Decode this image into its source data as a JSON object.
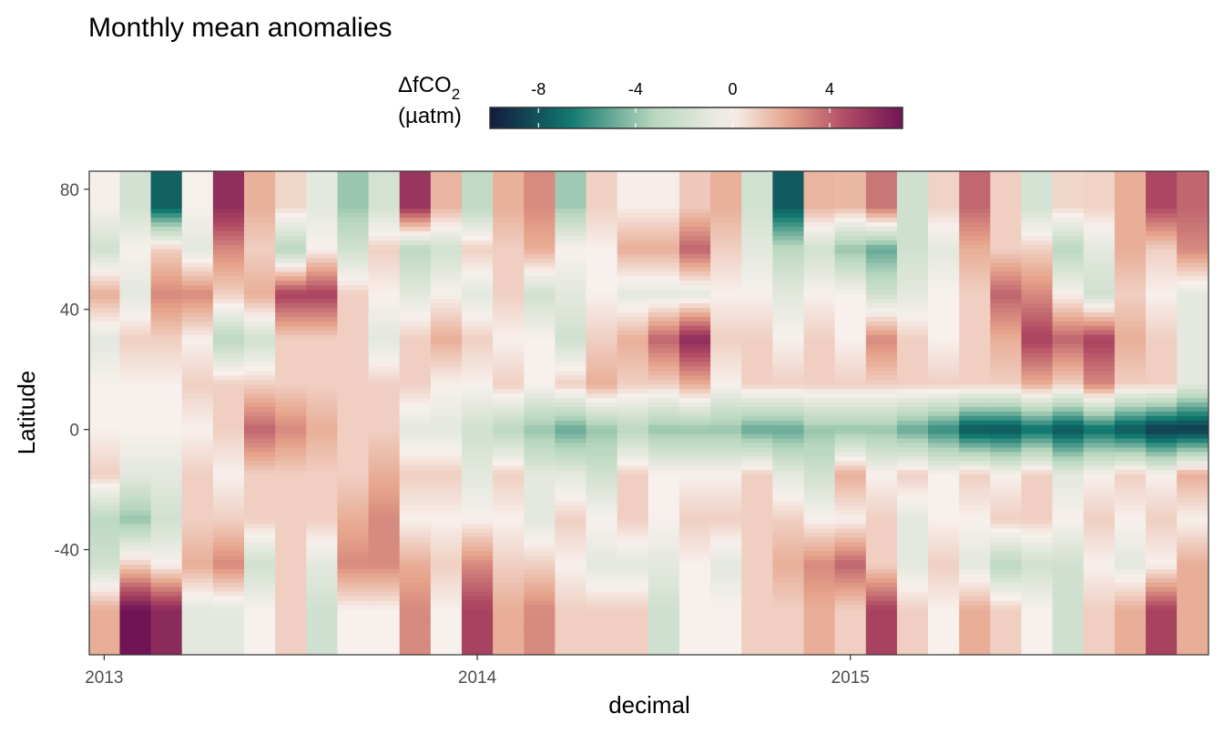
{
  "chart_data": {
    "type": "heatmap",
    "title": "Monthly mean anomalies",
    "xlabel": "decimal",
    "ylabel": "Latitude",
    "x_ticks": [
      "2013",
      "2014",
      "2015"
    ],
    "x_tick_values": [
      2013,
      2014,
      2015
    ],
    "y_ticks": [
      "80",
      "40",
      "0",
      "-40"
    ],
    "y_tick_values": [
      80,
      40,
      0,
      -40
    ],
    "xlim": [
      2012.96,
      2015.96
    ],
    "ylim": [
      -75,
      86
    ],
    "legend": {
      "title_main": "ΔfCO",
      "title_sub": "2",
      "title_unit": "(µatm)",
      "ticks": [
        "-8",
        "-4",
        "0",
        "4"
      ],
      "tick_values": [
        -8,
        -4,
        0,
        4
      ],
      "range": [
        -10,
        7
      ],
      "colors": [
        "#141b3f",
        "#10796f",
        "#b6d6bd",
        "#f7f0ec",
        "#e6a38a",
        "#b04a63",
        "#701456"
      ],
      "placement": "top"
    },
    "months": [
      "2013-01",
      "2013-02",
      "2013-03",
      "2013-04",
      "2013-05",
      "2013-06",
      "2013-07",
      "2013-08",
      "2013-09",
      "2013-10",
      "2013-11",
      "2013-12",
      "2014-01",
      "2014-02",
      "2014-03",
      "2014-04",
      "2014-05",
      "2014-06",
      "2014-07",
      "2014-08",
      "2014-09",
      "2014-10",
      "2014-11",
      "2014-12",
      "2015-01",
      "2015-02",
      "2015-03",
      "2015-04",
      "2015-05",
      "2015-06",
      "2015-07",
      "2015-08",
      "2015-09",
      "2015-10",
      "2015-11",
      "2015-12"
    ],
    "latitude_bands": [
      75,
      60,
      45,
      30,
      15,
      0,
      -15,
      -30,
      -45,
      -60,
      -70
    ],
    "anomalies": [
      [
        0,
        -2,
        2,
        -1,
        0,
        0,
        1,
        -3,
        -2,
        2
      ],
      [
        -2,
        0,
        -1,
        1,
        0,
        0,
        -1,
        -4,
        1,
        7
      ],
      [
        -8,
        1,
        3,
        1,
        0,
        0,
        -1,
        -2,
        0,
        6
      ],
      [
        0,
        -1,
        3,
        0,
        1,
        0,
        1,
        1,
        2,
        -1
      ],
      [
        6,
        3,
        1,
        -3,
        1,
        1,
        0,
        1,
        3,
        -1
      ],
      [
        2,
        1,
        2,
        -2,
        1,
        4,
        1,
        1,
        -2,
        0
      ],
      [
        1,
        -3,
        5,
        1,
        1,
        3,
        1,
        1,
        1,
        1
      ],
      [
        -1,
        0,
        5,
        1,
        1,
        2,
        1,
        1,
        -1,
        -2
      ],
      [
        -4,
        -2,
        1,
        1,
        1,
        1,
        1,
        2,
        3,
        0
      ],
      [
        -2,
        1,
        0,
        -1,
        1,
        1,
        2,
        3,
        3,
        0
      ],
      [
        6,
        -3,
        -1,
        1,
        1,
        -1,
        1,
        0,
        2,
        3
      ],
      [
        2,
        -2,
        0,
        2,
        0,
        -1,
        1,
        0,
        1,
        0
      ],
      [
        -3,
        1,
        -1,
        1,
        0,
        -2,
        -1,
        0,
        3,
        5
      ],
      [
        2,
        1,
        1,
        0,
        1,
        -3,
        1,
        0,
        1,
        2
      ],
      [
        3,
        2,
        -2,
        0,
        0,
        -4,
        -1,
        -1,
        1,
        3
      ],
      [
        -4,
        0,
        -1,
        -2,
        1,
        -5,
        -1,
        1,
        0,
        1
      ],
      [
        1,
        0,
        0,
        1,
        2,
        -4,
        -2,
        0,
        -1,
        1
      ],
      [
        0,
        2,
        -1,
        2,
        1,
        -3,
        1,
        1,
        -1,
        1
      ],
      [
        0,
        2,
        -1,
        4,
        1,
        -4,
        0,
        0,
        -1,
        -2
      ],
      [
        1,
        4,
        -1,
        6,
        2,
        -4,
        0,
        1,
        0,
        0
      ],
      [
        2,
        1,
        0,
        1,
        0,
        -4,
        0,
        1,
        -1,
        0
      ],
      [
        -2,
        -1,
        0,
        1,
        1,
        -5,
        1,
        1,
        1,
        1
      ],
      [
        -8,
        -3,
        -1,
        0,
        1,
        -5,
        -1,
        1,
        2,
        1
      ],
      [
        2,
        -2,
        0,
        1,
        1,
        -4,
        -2,
        0,
        3,
        2
      ],
      [
        2,
        -4,
        0,
        0,
        1,
        -4,
        2,
        0,
        4,
        1
      ],
      [
        4,
        -5,
        -2,
        3,
        1,
        -4,
        0,
        1,
        1,
        5
      ],
      [
        -2,
        -2,
        -1,
        1,
        1,
        -5,
        1,
        -1,
        -1,
        1
      ],
      [
        1,
        -1,
        0,
        0,
        1,
        -6,
        0,
        0,
        1,
        0
      ],
      [
        4,
        2,
        1,
        1,
        1,
        -8,
        1,
        0,
        -1,
        2
      ],
      [
        1,
        1,
        4,
        2,
        1,
        -8,
        0,
        1,
        -3,
        1
      ],
      [
        -2,
        1,
        3,
        5,
        2,
        -7,
        1,
        1,
        -2,
        0
      ],
      [
        1,
        -3,
        0,
        4,
        1,
        -8,
        -1,
        0,
        -2,
        -2
      ],
      [
        1,
        -1,
        -2,
        5,
        3,
        -7,
        0,
        1,
        0,
        1
      ],
      [
        2,
        2,
        1,
        2,
        1,
        -8,
        1,
        0,
        -1,
        2
      ],
      [
        5,
        1,
        0,
        1,
        1,
        -9,
        0,
        1,
        0,
        5
      ],
      [
        4,
        3,
        -1,
        -1,
        -1,
        -9,
        2,
        0,
        2,
        2
      ]
    ]
  }
}
